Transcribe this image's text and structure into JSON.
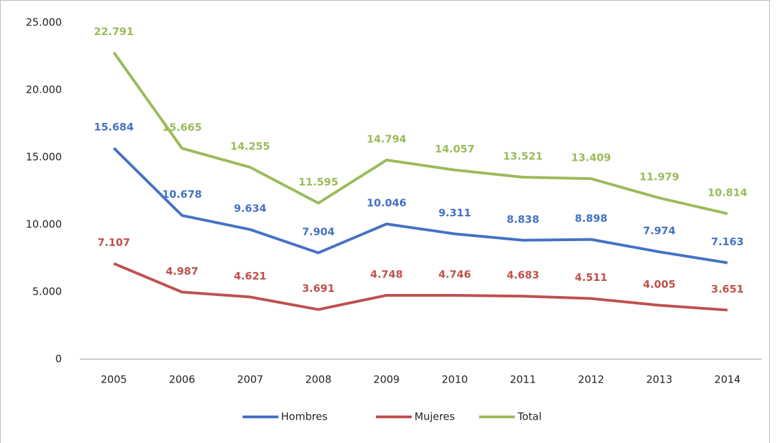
{
  "chart_data": {
    "type": "line",
    "categories": [
      "2005",
      "2006",
      "2007",
      "2008",
      "2009",
      "2010",
      "2011",
      "2012",
      "2013",
      "2014"
    ],
    "series": [
      {
        "name": "Hombres",
        "color": "#4472c4",
        "values": [
          15684,
          10678,
          9634,
          7904,
          10046,
          9311,
          8838,
          8898,
          7974,
          7163
        ],
        "value_labels": [
          "15.684",
          "10.678",
          "9.634",
          "7.904",
          "10.046",
          "9.311",
          "8.838",
          "8.898",
          "7.974",
          "7.163"
        ]
      },
      {
        "name": "Mujeres",
        "color": "#c0504d",
        "values": [
          7107,
          4987,
          4621,
          3691,
          4748,
          4746,
          4683,
          4511,
          4005,
          3651
        ],
        "value_labels": [
          "7.107",
          "4.987",
          "4.621",
          "3.691",
          "4.748",
          "4.746",
          "4.683",
          "4.511",
          "4.005",
          "3.651"
        ]
      },
      {
        "name": "Total",
        "color": "#9bbb59",
        "values": [
          22791,
          15665,
          14255,
          11595,
          14794,
          14057,
          13521,
          13409,
          11979,
          10814
        ],
        "value_labels": [
          "22.791",
          "15.665",
          "14.255",
          "11.595",
          "14.794",
          "14.057",
          "13.521",
          "13.409",
          "11.979",
          "10.814"
        ]
      }
    ],
    "ylim": [
      0,
      25000
    ],
    "yticks": [
      0,
      {
        "value": 5000,
        "label": "5.000"
      },
      {
        "value": 10000,
        "label": "10.000"
      },
      {
        "value": 15000,
        "label": "15.000"
      },
      {
        "value": 20000,
        "label": "20.000"
      },
      {
        "value": 25000,
        "label": "25.000"
      }
    ],
    "grid": false,
    "legend": "bottom"
  }
}
